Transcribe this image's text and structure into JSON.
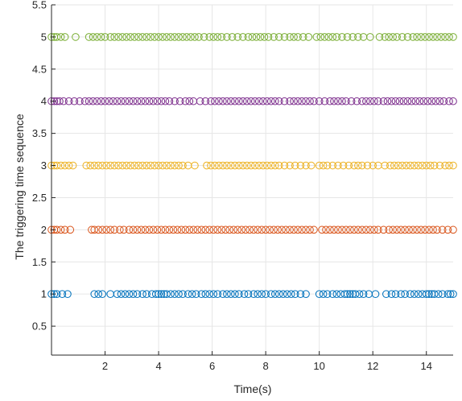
{
  "chart_data": {
    "type": "scatter",
    "title": "",
    "xlabel": "Time(s)",
    "ylabel": "The triggering time sequence",
    "xlim": [
      0,
      15
    ],
    "ylim": [
      0.05,
      5.5
    ],
    "x_ticks": [
      2,
      4,
      6,
      8,
      10,
      12,
      14
    ],
    "y_ticks": [
      0.5,
      1,
      1.5,
      2,
      2.5,
      3,
      3.5,
      4,
      4.5,
      5,
      5.5
    ],
    "grid": true,
    "marker": "open-circle",
    "series": [
      {
        "y": 1,
        "color": "#0072BD",
        "x": [
          0.0,
          0.1,
          0.2,
          0.4,
          0.6,
          1.6,
          1.75,
          1.9,
          2.2,
          2.45,
          2.6,
          2.75,
          2.9,
          3.05,
          3.2,
          3.4,
          3.55,
          3.75,
          3.9,
          4.0,
          4.1,
          4.2,
          4.3,
          4.45,
          4.6,
          4.75,
          4.9,
          5.1,
          5.25,
          5.4,
          5.6,
          5.75,
          5.9,
          6.05,
          6.2,
          6.4,
          6.55,
          6.7,
          6.85,
          7.0,
          7.2,
          7.35,
          7.55,
          7.7,
          7.85,
          8.0,
          8.2,
          8.35,
          8.5,
          8.65,
          8.8,
          8.95,
          9.1,
          9.3,
          9.5,
          10.0,
          10.15,
          10.3,
          10.5,
          10.65,
          10.8,
          10.95,
          11.05,
          11.15,
          11.25,
          11.35,
          11.5,
          11.65,
          11.85,
          12.1,
          12.5,
          12.7,
          12.85,
          13.05,
          13.2,
          13.4,
          13.55,
          13.7,
          13.85,
          14.0,
          14.1,
          14.2,
          14.3,
          14.45,
          14.6,
          14.8,
          14.9,
          15.0
        ]
      },
      {
        "y": 2,
        "color": "#D95319",
        "x": [
          0.0,
          0.1,
          0.2,
          0.35,
          0.5,
          0.7,
          1.5,
          1.6,
          1.75,
          1.9,
          2.05,
          2.2,
          2.35,
          2.55,
          2.7,
          2.9,
          3.05,
          3.2,
          3.35,
          3.5,
          3.65,
          3.8,
          3.95,
          4.1,
          4.25,
          4.4,
          4.55,
          4.7,
          4.85,
          5.0,
          5.15,
          5.3,
          5.45,
          5.6,
          5.75,
          5.9,
          6.05,
          6.2,
          6.35,
          6.5,
          6.65,
          6.8,
          6.95,
          7.1,
          7.25,
          7.4,
          7.55,
          7.7,
          7.85,
          8.0,
          8.15,
          8.3,
          8.45,
          8.6,
          8.75,
          8.9,
          9.05,
          9.2,
          9.35,
          9.5,
          9.65,
          9.8,
          10.1,
          10.25,
          10.4,
          10.55,
          10.7,
          10.85,
          11.0,
          11.15,
          11.3,
          11.45,
          11.6,
          11.75,
          11.9,
          12.05,
          12.2,
          12.4,
          12.6,
          12.75,
          12.9,
          13.05,
          13.2,
          13.35,
          13.5,
          13.65,
          13.8,
          13.95,
          14.1,
          14.25,
          14.4,
          14.6,
          14.8,
          15.0
        ]
      },
      {
        "y": 3,
        "color": "#EDB120",
        "x": [
          0.0,
          0.1,
          0.2,
          0.35,
          0.5,
          0.65,
          0.8,
          1.3,
          1.45,
          1.6,
          1.75,
          1.9,
          2.05,
          2.2,
          2.35,
          2.5,
          2.65,
          2.8,
          2.95,
          3.1,
          3.25,
          3.4,
          3.55,
          3.7,
          3.85,
          4.0,
          4.15,
          4.3,
          4.45,
          4.6,
          4.75,
          4.9,
          5.1,
          5.35,
          5.8,
          5.95,
          6.1,
          6.25,
          6.4,
          6.55,
          6.7,
          6.85,
          7.0,
          7.15,
          7.3,
          7.45,
          7.6,
          7.75,
          7.9,
          8.05,
          8.2,
          8.35,
          8.5,
          8.7,
          8.9,
          9.1,
          9.3,
          9.5,
          9.7,
          10.0,
          10.15,
          10.3,
          10.5,
          10.7,
          10.9,
          11.1,
          11.3,
          11.45,
          11.6,
          11.8,
          12.0,
          12.2,
          12.45,
          12.65,
          12.8,
          12.95,
          13.1,
          13.25,
          13.4,
          13.55,
          13.7,
          13.85,
          14.0,
          14.15,
          14.3,
          14.5,
          14.7,
          14.85,
          15.0
        ]
      },
      {
        "y": 4,
        "color": "#7E2F8E",
        "x": [
          0.0,
          0.1,
          0.2,
          0.3,
          0.45,
          0.65,
          0.85,
          1.05,
          1.25,
          1.4,
          1.55,
          1.7,
          1.85,
          2.0,
          2.15,
          2.3,
          2.45,
          2.6,
          2.75,
          2.9,
          3.05,
          3.2,
          3.35,
          3.5,
          3.65,
          3.8,
          3.95,
          4.1,
          4.25,
          4.4,
          4.6,
          4.8,
          5.0,
          5.15,
          5.3,
          5.55,
          5.75,
          5.95,
          6.1,
          6.25,
          6.4,
          6.55,
          6.7,
          6.85,
          7.0,
          7.15,
          7.3,
          7.45,
          7.6,
          7.75,
          7.9,
          8.05,
          8.2,
          8.35,
          8.5,
          8.7,
          8.9,
          9.05,
          9.2,
          9.35,
          9.5,
          9.65,
          9.8,
          10.0,
          10.2,
          10.4,
          10.55,
          10.7,
          10.85,
          11.0,
          11.2,
          11.4,
          11.6,
          11.75,
          11.9,
          12.05,
          12.2,
          12.4,
          12.55,
          12.7,
          12.85,
          13.0,
          13.15,
          13.3,
          13.45,
          13.6,
          13.75,
          13.9,
          14.05,
          14.2,
          14.35,
          14.5,
          14.65,
          14.85,
          15.0
        ]
      },
      {
        "y": 5,
        "color": "#77AC30",
        "x": [
          0.0,
          0.1,
          0.2,
          0.35,
          0.5,
          0.9,
          1.4,
          1.55,
          1.7,
          1.85,
          2.0,
          2.2,
          2.35,
          2.5,
          2.65,
          2.8,
          2.95,
          3.1,
          3.25,
          3.4,
          3.55,
          3.7,
          3.85,
          4.0,
          4.15,
          4.3,
          4.45,
          4.6,
          4.75,
          4.9,
          5.05,
          5.2,
          5.35,
          5.5,
          5.7,
          5.9,
          6.05,
          6.2,
          6.35,
          6.55,
          6.75,
          6.95,
          7.15,
          7.35,
          7.5,
          7.65,
          7.8,
          7.95,
          8.1,
          8.3,
          8.5,
          8.7,
          8.9,
          9.05,
          9.2,
          9.4,
          9.6,
          9.9,
          10.05,
          10.2,
          10.35,
          10.5,
          10.65,
          10.85,
          11.05,
          11.25,
          11.45,
          11.65,
          11.9,
          12.25,
          12.45,
          12.6,
          12.75,
          12.9,
          13.1,
          13.3,
          13.5,
          13.65,
          13.8,
          13.95,
          14.1,
          14.25,
          14.4,
          14.55,
          14.7,
          14.85,
          15.0
        ]
      }
    ]
  }
}
